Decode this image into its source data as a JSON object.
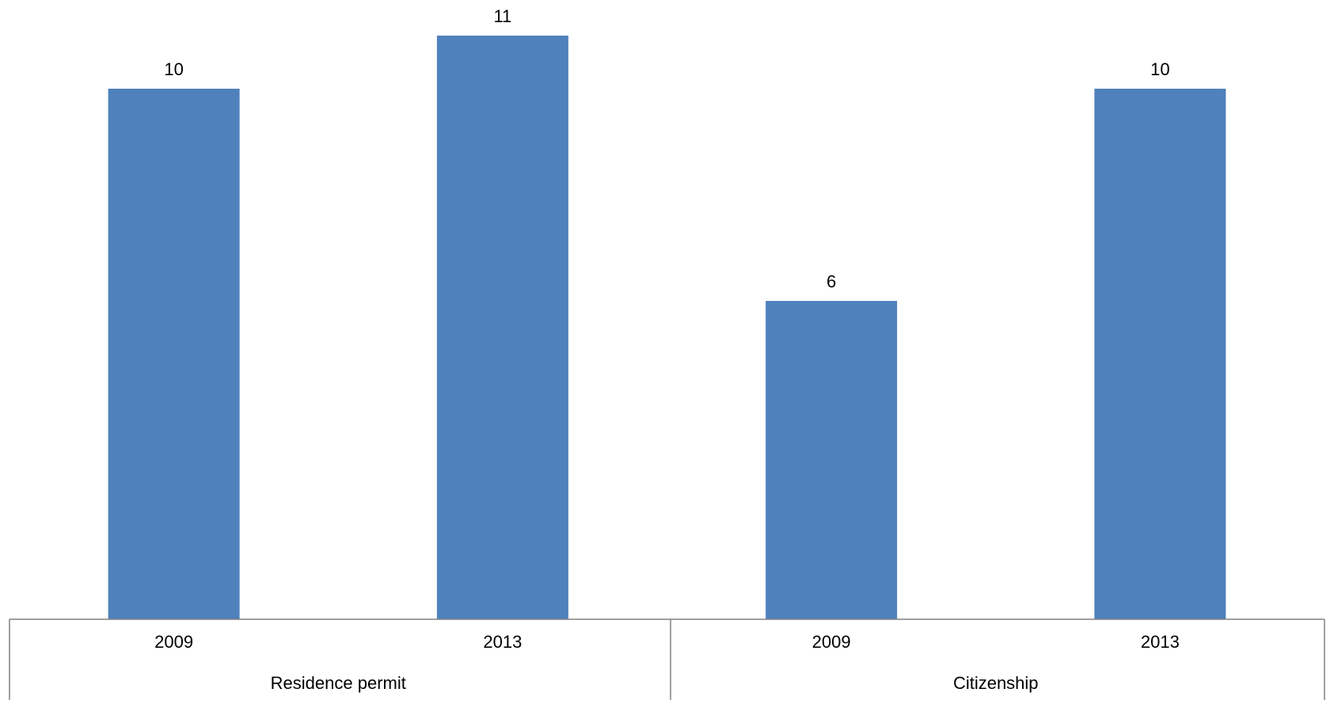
{
  "chart_data": {
    "type": "bar",
    "title": "",
    "xlabel": "",
    "ylabel": "",
    "ylim": [
      0,
      11
    ],
    "bar_color": "#4f81bd",
    "axis_color": "#808080",
    "groups": [
      {
        "label": "Residence permit",
        "categories": [
          "2009",
          "2013"
        ],
        "values": [
          10,
          11
        ]
      },
      {
        "label": "Citizenship",
        "categories": [
          "2009",
          "2013"
        ],
        "values": [
          6,
          10
        ]
      }
    ],
    "data_labels": true,
    "grid": false,
    "legend": "none"
  }
}
